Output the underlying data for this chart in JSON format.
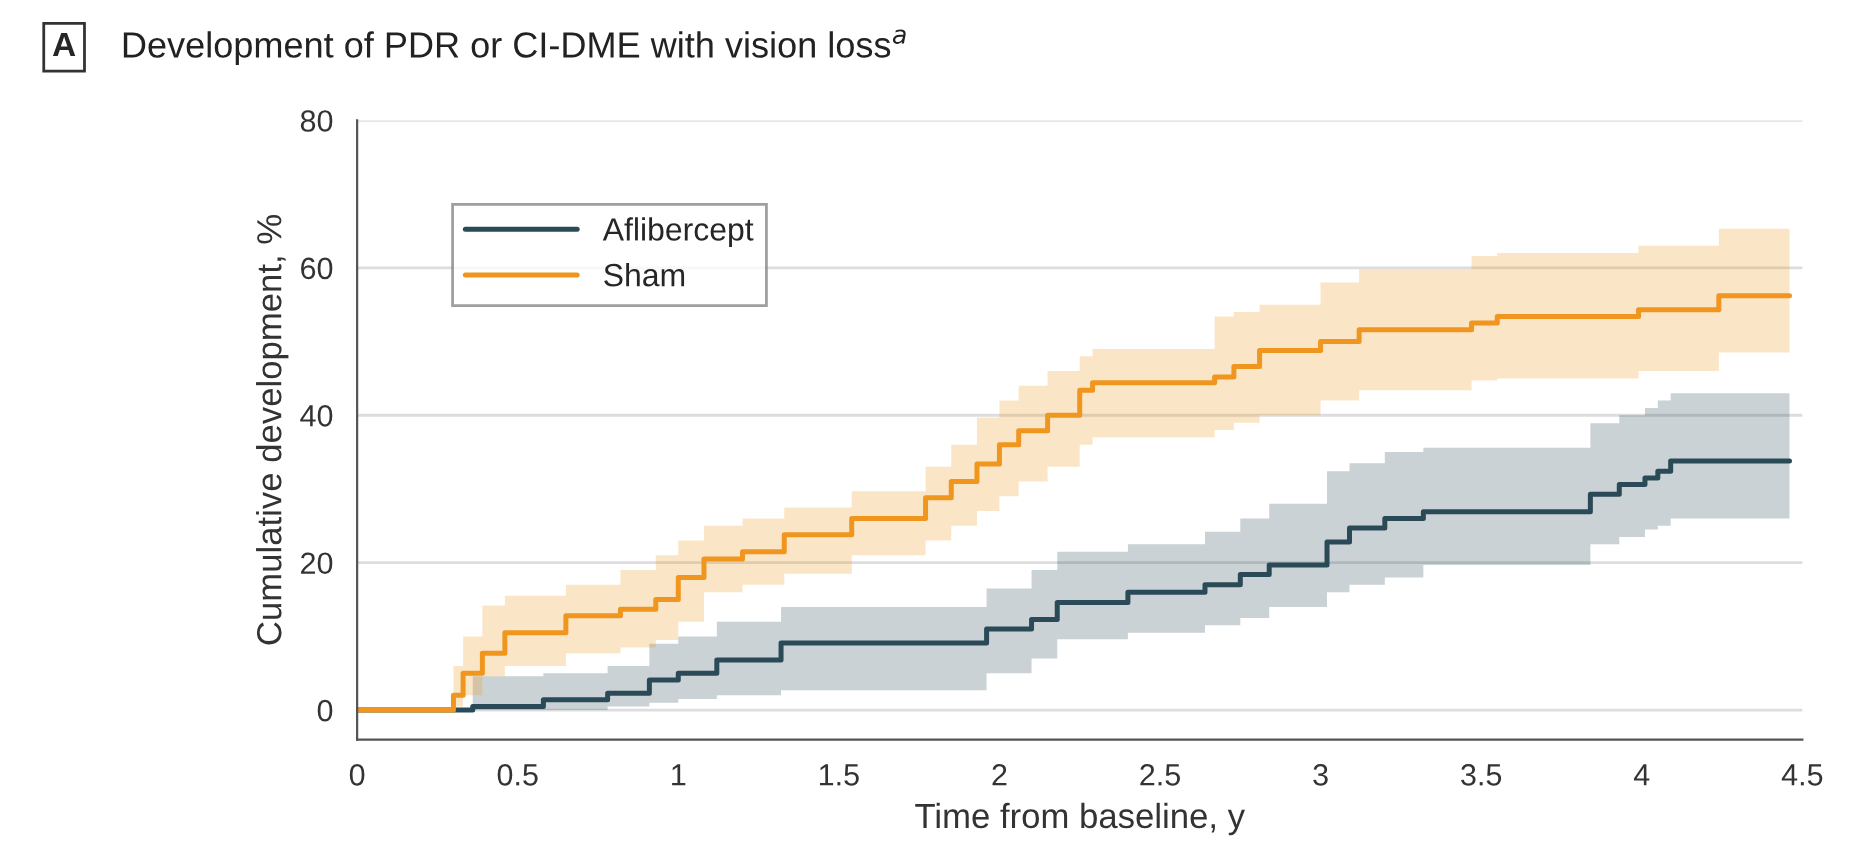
{
  "chart_data": {
    "type": "step",
    "title": "Development of PDR or CI-DME with vision loss$^{a}$",
    "annotations": [
      "A"
    ],
    "xlabel": "Time from baseline, y",
    "ylabel": "Cumulative development, %",
    "xlim": [
      0,
      4.5
    ],
    "xticks": [
      0,
      0.5,
      1,
      1.5,
      2,
      2.5,
      3,
      3.5,
      4,
      4.5
    ],
    "ylim": [
      -4,
      80
    ],
    "yticks": [
      0,
      20,
      40,
      60,
      80
    ],
    "grid": "y",
    "legend": "top left",
    "line_style": "solid",
    "marker": "none",
    "series": [
      {
        "name": "Aflibercept",
        "color": "#2b4a58",
        "x": [
          0,
          0.36,
          0.58,
          0.78,
          0.91,
          1.0,
          1.12,
          1.32,
          1.96,
          2.1,
          2.18,
          2.4,
          2.64,
          2.75,
          2.84,
          3.02,
          3.09,
          3.2,
          3.32,
          3.84,
          3.93,
          4.01,
          4.05,
          4.09,
          4.46
        ],
        "values": [
          0,
          0.5,
          1.4,
          2.3,
          4.1,
          5,
          6.8,
          9.1,
          11,
          12.3,
          14.6,
          16,
          17,
          18.4,
          19.7,
          22.8,
          24.7,
          26,
          26.9,
          29.3,
          30.6,
          31.5,
          32.4,
          33.8,
          33.8
        ],
        "lower": [
          null,
          0,
          0,
          0.5,
          1,
          1.5,
          2,
          2.7,
          5,
          7,
          9.6,
          10.5,
          11.5,
          12.5,
          14,
          16,
          17,
          18,
          19.7,
          22.5,
          23.5,
          24.5,
          25,
          26,
          26
        ],
        "upper": [
          null,
          4.6,
          5,
          6,
          9,
          10,
          12,
          14,
          16.5,
          19,
          21.5,
          22.5,
          24.2,
          26,
          28,
          32.4,
          33.5,
          35,
          35.6,
          38.9,
          40,
          41,
          42,
          43,
          43
        ]
      },
      {
        "name": "Sham",
        "color": "#f0961e",
        "x": [
          0,
          0.28,
          0.3,
          0.33,
          0.39,
          0.46,
          0.65,
          0.82,
          0.93,
          1.0,
          1.08,
          1.2,
          1.33,
          1.54,
          1.77,
          1.85,
          1.93,
          2.0,
          2.06,
          2.15,
          2.25,
          2.29,
          2.67,
          2.73,
          2.81,
          3.0,
          3.12,
          3.47,
          3.55,
          3.99,
          4.24,
          4.46
        ],
        "values": [
          0,
          0,
          2,
          5,
          7.7,
          10.5,
          12.8,
          13.7,
          15,
          18,
          20.5,
          21.5,
          23.8,
          26,
          28.8,
          31,
          33.4,
          36,
          37.9,
          40,
          43.4,
          44.4,
          45.2,
          46.6,
          48.8,
          50,
          51.6,
          52.5,
          53.4,
          54.3,
          56.2,
          56.2
        ],
        "lower": [
          null,
          0,
          0.5,
          2,
          4.6,
          6,
          7.7,
          8.5,
          9.5,
          12,
          16,
          17,
          18.5,
          21,
          23,
          25,
          27,
          29,
          31,
          33,
          36,
          37,
          38,
          39,
          40,
          42,
          43.4,
          44.7,
          45,
          46,
          48.5,
          48.5
        ],
        "upper": [
          null,
          0,
          6,
          10,
          14.2,
          15.5,
          17,
          19,
          21,
          23,
          25,
          26,
          27.5,
          29.7,
          33,
          36,
          39.7,
          42,
          44,
          46,
          48,
          49,
          53.4,
          54,
          55,
          58,
          59.8,
          61.6,
          62,
          63,
          65.3,
          65.3
        ]
      }
    ]
  }
}
